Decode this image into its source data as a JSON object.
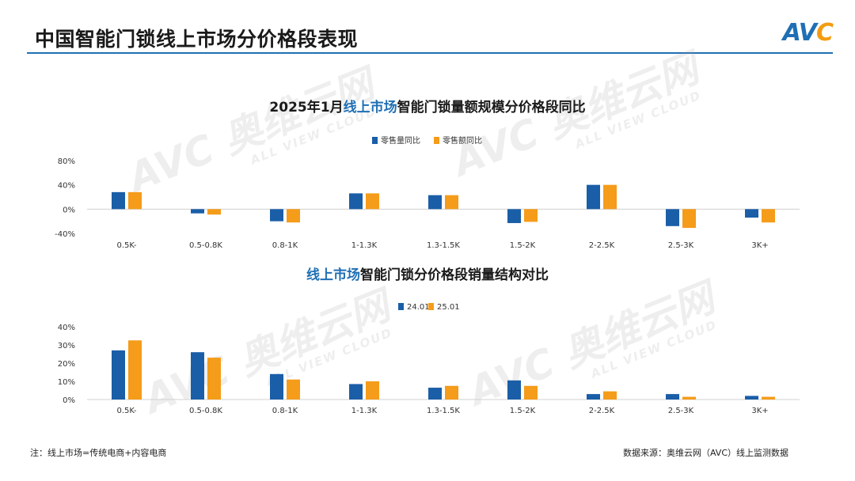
{
  "header": {
    "title": "中国智能门锁线上市场分价格段表现",
    "logo": "AVC"
  },
  "watermark": {
    "text": "AVC 奥维云网",
    "subtext": "ALL VIEW CLOUD"
  },
  "chart_data": [
    {
      "type": "bar",
      "title_prefix": "2025年1月",
      "title_highlight": "线上市场",
      "title_suffix": "智能门锁量额规模分价格段同比",
      "categories": [
        "0.5K-",
        "0.5-0.8K",
        "0.8-1K",
        "1-1.3K",
        "1.3-1.5K",
        "1.5-2K",
        "2-2.5K",
        "2.5-3K",
        "3K+"
      ],
      "series": [
        {
          "name": "零售量同比",
          "color": "#1a5ea8",
          "values": [
            28,
            -7,
            -20,
            26,
            23,
            -23,
            40,
            -28,
            -14
          ]
        },
        {
          "name": "零售额同比",
          "color": "#f59c1a",
          "values": [
            28,
            -9,
            -22,
            26,
            23,
            -21,
            40,
            -31,
            -22
          ]
        }
      ],
      "yticks": [
        "80%",
        "40%",
        "0%",
        "-40%"
      ],
      "ylim": [
        -40,
        80
      ],
      "legend_position": "top"
    },
    {
      "type": "bar",
      "title_highlight": "线上市场",
      "title_suffix": "智能门锁分价格段销量结构对比",
      "categories": [
        "0.5K-",
        "0.5-0.8K",
        "0.8-1K",
        "1-1.3K",
        "1.3-1.5K",
        "1.5-2K",
        "2-2.5K",
        "2.5-3K",
        "3K+"
      ],
      "series": [
        {
          "name": "24.01",
          "color": "#1a5ea8",
          "values": [
            27,
            26,
            14,
            8.5,
            6.5,
            10.5,
            3,
            3,
            2
          ]
        },
        {
          "name": "25.01",
          "color": "#f59c1a",
          "values": [
            32.5,
            23,
            11,
            10,
            7.5,
            7.5,
            4.5,
            1.5,
            1.5
          ]
        }
      ],
      "yticks": [
        "40%",
        "30%",
        "20%",
        "10%",
        "0%"
      ],
      "ylim": [
        0,
        40
      ],
      "legend_position": "top"
    }
  ],
  "footer": {
    "note": "注：线上市场=传统电商+内容电商",
    "source": "数据来源：奥维云网（AVC）线上监测数据"
  }
}
